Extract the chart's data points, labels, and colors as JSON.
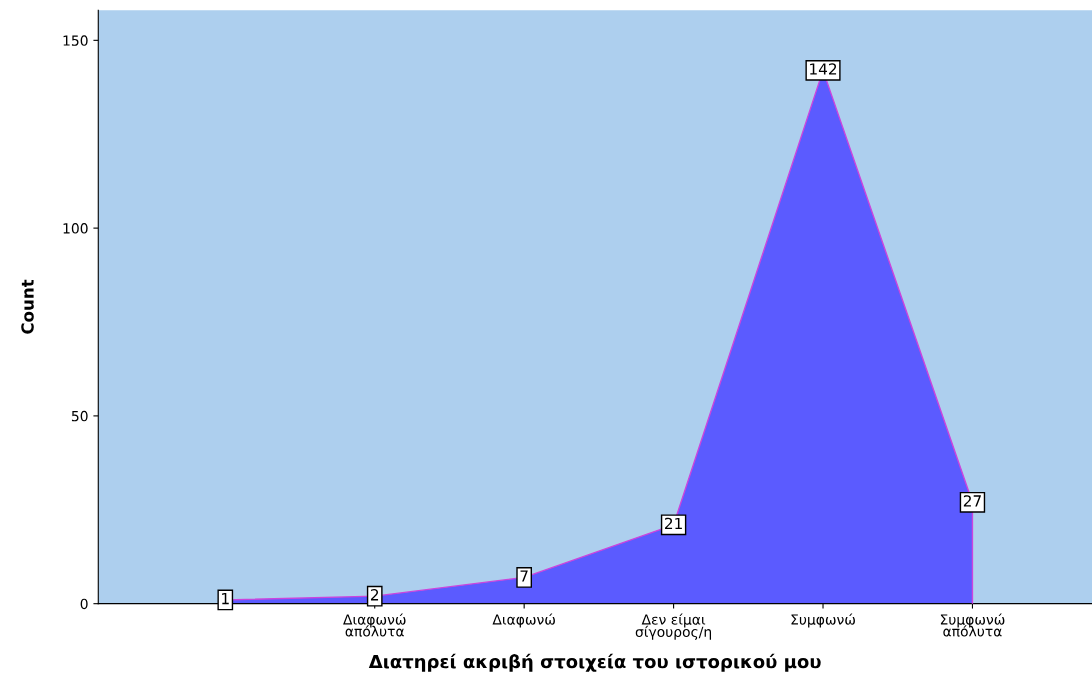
{
  "chart_data": {
    "type": "area",
    "xlabel": "Διατηρεί ακριβή στοιχεία του ιστορικού μου",
    "ylabel": "Count",
    "categories": [
      null,
      "Διαφωνώ\nαπόλυτα",
      "Διαφωνώ",
      "Δεν είμαι\nσίγουρος/η",
      "Συμφωνώ",
      "Συμφωνώ\nαπόλυτα"
    ],
    "series": [
      {
        "color": "#5b5bff",
        "values": [
          1,
          2,
          7,
          21,
          142,
          27
        ]
      }
    ],
    "ylim": [
      0,
      158
    ],
    "yticks": [
      0,
      50,
      100,
      150
    ],
    "data_labels": true,
    "grid": false
  }
}
